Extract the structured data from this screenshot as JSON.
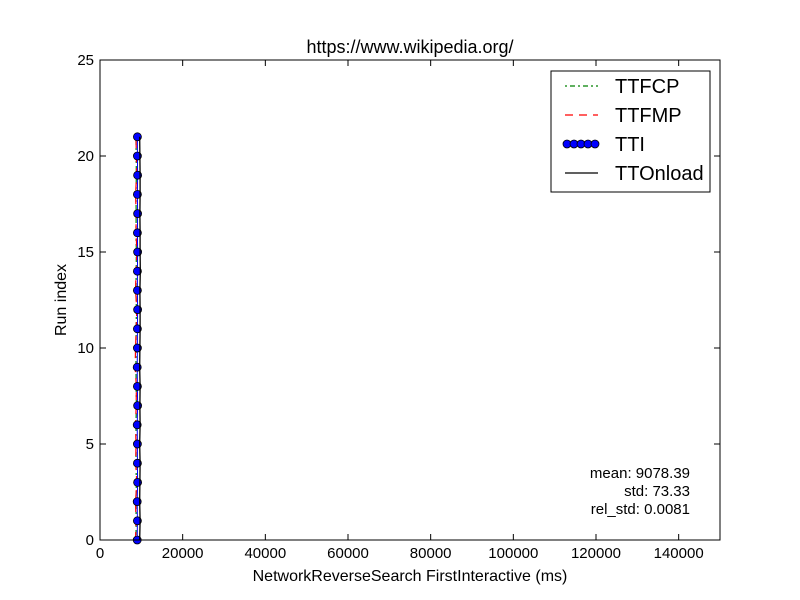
{
  "chart_data": {
    "type": "line",
    "title": "https://www.wikipedia.org/",
    "xlabel": "NetworkReverseSearch FirstInteractive (ms)",
    "ylabel": "Run index",
    "xlim": [
      0,
      150000
    ],
    "ylim": [
      0,
      25
    ],
    "xticks": [
      0,
      20000,
      40000,
      60000,
      80000,
      100000,
      120000,
      140000
    ],
    "yticks": [
      0,
      5,
      10,
      15,
      20,
      25
    ],
    "grid": false,
    "legend_position": "top-right",
    "y": [
      0,
      1,
      2,
      3,
      4,
      5,
      6,
      7,
      8,
      9,
      10,
      11,
      12,
      13,
      14,
      15,
      16,
      17,
      18,
      19,
      20,
      21
    ],
    "series": [
      {
        "name": "TTFCP",
        "style": "dash-dot",
        "color": "#008000",
        "x": [
          8700,
          8750,
          8700,
          8800,
          8700,
          8750,
          8700,
          8800,
          8750,
          8700,
          8700,
          8750,
          8800,
          8700,
          8750,
          8800,
          8700,
          8750,
          8700,
          8800,
          8750,
          8700
        ]
      },
      {
        "name": "TTFMP",
        "style": "dashed",
        "color": "#ff0000",
        "x": [
          8600,
          8700,
          8600,
          8900,
          8650,
          8700,
          8600,
          8750,
          8800,
          8500,
          8600,
          8750,
          8900,
          8600,
          8700,
          8950,
          8700,
          8750,
          8600,
          8850,
          8800,
          8700
        ]
      },
      {
        "name": "TTI",
        "style": "circle-markers",
        "color": "#0000ff",
        "x": [
          9000,
          9050,
          9000,
          9100,
          9050,
          9050,
          9000,
          9100,
          9050,
          9000,
          9050,
          9050,
          9100,
          9050,
          9050,
          9100,
          9050,
          9100,
          9050,
          9100,
          9050,
          9050
        ]
      },
      {
        "name": "TTOnload",
        "style": "solid",
        "color": "#000000",
        "x": [
          9600,
          9700,
          9600,
          9650,
          9700,
          9600,
          9700,
          9650,
          9700,
          9600,
          9650,
          9700,
          9700,
          9650,
          9750,
          9700,
          9700,
          9650,
          9700,
          9700,
          9650,
          9600
        ]
      }
    ],
    "annotations": {
      "mean": "mean: 9078.39",
      "std": "std: 73.33",
      "rel_std": "rel_std: 0.0081"
    }
  }
}
